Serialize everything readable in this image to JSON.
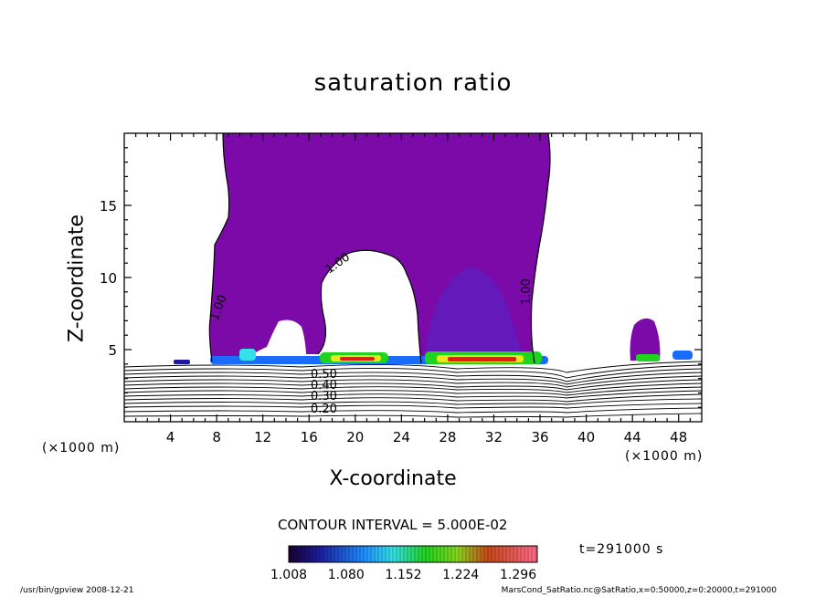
{
  "chart_data": {
    "type": "heatmap",
    "title": "saturation ratio",
    "xlabel": "X-coordinate",
    "ylabel": "Z-coordinate",
    "x_unit": "(×1000 m)",
    "xlim": [
      0,
      50
    ],
    "ylim": [
      0,
      20
    ],
    "x_ticks": [
      4,
      8,
      12,
      16,
      20,
      24,
      28,
      32,
      36,
      40,
      44,
      48
    ],
    "y_ticks": [
      5,
      10,
      15
    ],
    "contour_interval": "CONTOUR INTERVAL = 5.000E-02",
    "contour_labels": [
      "1.00",
      "1.00",
      "1.00",
      "0.20",
      "0.30",
      "0.40",
      "0.50"
    ],
    "colorbar": {
      "ticks": [
        "1.008",
        "1.080",
        "1.152",
        "1.224",
        "1.296"
      ],
      "range": [
        1.008,
        1.32
      ]
    },
    "time": "t=291000 s"
  },
  "footer": {
    "left": "/usr/bin/gpview   2008-12-21",
    "right": "MarsCond_SatRatio.nc@SatRatio,x=0:50000,z=0:20000,t=291000"
  },
  "colors": {
    "saturated": "#7b0aa8",
    "saturated_core": "#5a18b8",
    "high_ratio": "#e81818",
    "mid_ratio": "#1ed41e",
    "low_ratio": "#1a6cff"
  }
}
